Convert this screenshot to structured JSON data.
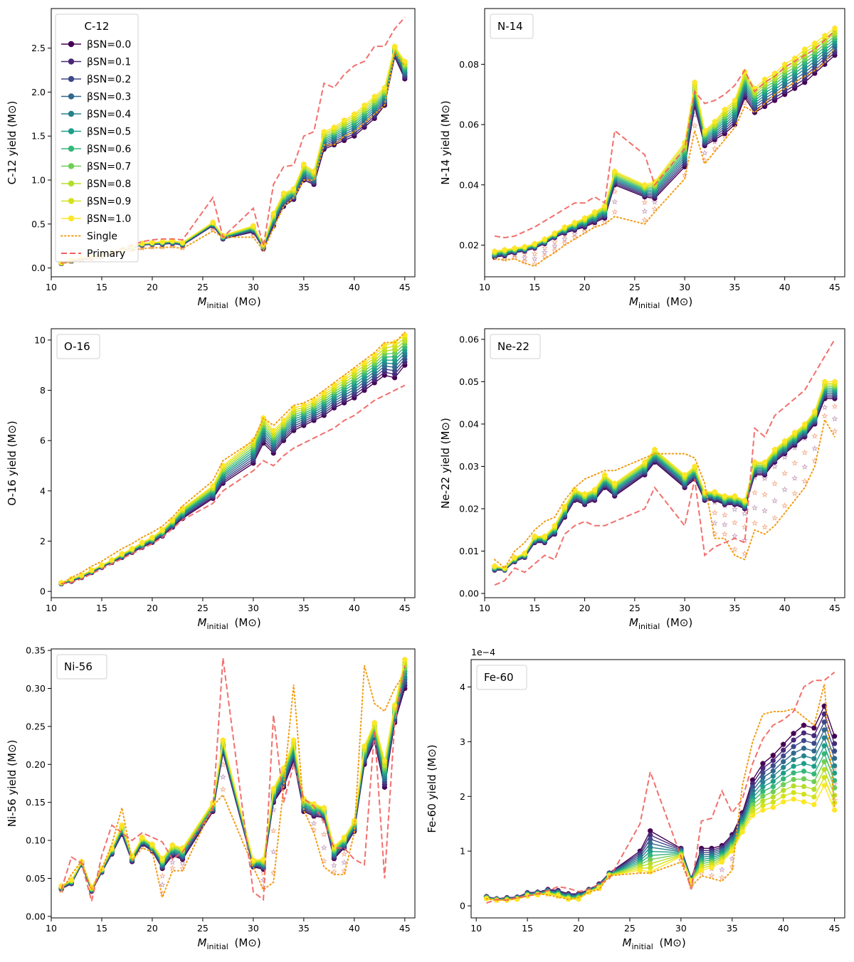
{
  "chart_data": [
    {
      "type": "line",
      "title": "C-12",
      "label": "C-12",
      "xlabel_main": "M",
      "xlabel_sub": "initial",
      "xlabel_unit": "(M⊙)",
      "ylabel": "C-12 yield (M⊙)",
      "xlim": [
        10,
        46
      ],
      "ylim": [
        -0.1,
        2.95
      ],
      "xticks": [
        10,
        15,
        20,
        25,
        30,
        35,
        40,
        45
      ],
      "yticks": [
        0.0,
        0.5,
        1.0,
        1.5,
        2.0,
        2.5
      ],
      "ytick_labels": [
        "0.0",
        "0.5",
        "1.0",
        "1.5",
        "2.0",
        "2.5"
      ],
      "x": [
        11,
        12,
        13,
        14,
        15,
        16,
        17,
        18,
        19,
        20,
        21,
        22,
        23,
        26,
        27,
        30,
        31,
        32,
        33,
        34,
        35,
        36,
        37,
        38,
        39,
        40,
        41,
        42,
        43,
        44,
        45
      ],
      "beta_low": [
        0.05,
        0.08,
        0.1,
        0.12,
        0.14,
        0.17,
        0.2,
        0.23,
        0.26,
        0.27,
        0.27,
        0.28,
        0.26,
        0.48,
        0.33,
        0.41,
        0.22,
        0.48,
        0.7,
        0.78,
        1.0,
        0.95,
        1.35,
        1.4,
        1.45,
        1.5,
        1.6,
        1.7,
        1.85,
        2.4,
        2.15
      ],
      "beta_high": [
        0.06,
        0.09,
        0.11,
        0.13,
        0.15,
        0.18,
        0.21,
        0.24,
        0.28,
        0.29,
        0.3,
        0.31,
        0.29,
        0.52,
        0.37,
        0.48,
        0.27,
        0.62,
        0.85,
        0.9,
        1.18,
        1.1,
        1.55,
        1.6,
        1.68,
        1.75,
        1.85,
        1.95,
        2.05,
        2.52,
        2.35
      ],
      "single": [
        0.05,
        0.07,
        0.09,
        0.1,
        0.12,
        0.15,
        0.18,
        0.2,
        0.22,
        0.23,
        0.23,
        0.24,
        0.22,
        0.42,
        0.35,
        0.35,
        0.2,
        0.45,
        0.7,
        0.8,
        1.0,
        1.0,
        1.4,
        1.4,
        1.5,
        1.55,
        1.65,
        1.75,
        1.85,
        2.45,
        2.3
      ],
      "primary": [
        0.06,
        0.08,
        0.1,
        0.12,
        0.15,
        0.18,
        0.22,
        0.26,
        0.3,
        0.32,
        0.33,
        0.33,
        0.32,
        0.8,
        0.35,
        0.68,
        0.25,
        0.95,
        1.15,
        1.17,
        1.5,
        1.55,
        2.1,
        2.05,
        2.2,
        2.3,
        2.35,
        2.52,
        2.52,
        2.72,
        2.85
      ],
      "stars": true,
      "legend": {
        "title": "C-12",
        "beta_labels": [
          "βSN=0.0",
          "βSN=0.1",
          "βSN=0.2",
          "βSN=0.3",
          "βSN=0.4",
          "βSN=0.5",
          "βSN=0.6",
          "βSN=0.7",
          "βSN=0.8",
          "βSN=0.9",
          "βSN=1.0"
        ],
        "single_label": "Single",
        "primary_label": "Primary"
      }
    },
    {
      "type": "line",
      "title": "N-14",
      "label": "N-14",
      "xlabel_main": "M",
      "xlabel_sub": "initial",
      "xlabel_unit": "(M⊙)",
      "ylabel": "N-14 yield (M⊙)",
      "xlim": [
        10,
        46
      ],
      "ylim": [
        0.0095,
        0.0985
      ],
      "xticks": [
        10,
        15,
        20,
        25,
        30,
        35,
        40,
        45
      ],
      "yticks": [
        0.02,
        0.04,
        0.06,
        0.08
      ],
      "ytick_labels": [
        "0.02",
        "0.04",
        "0.06",
        "0.08"
      ],
      "x": [
        11,
        12,
        13,
        14,
        15,
        16,
        17,
        18,
        19,
        20,
        21,
        22,
        23,
        26,
        27,
        30,
        31,
        32,
        33,
        34,
        35,
        36,
        37,
        38,
        39,
        40,
        41,
        42,
        43,
        44,
        45
      ],
      "beta_low": [
        0.016,
        0.0165,
        0.0175,
        0.018,
        0.019,
        0.0205,
        0.0225,
        0.024,
        0.025,
        0.026,
        0.0275,
        0.029,
        0.04,
        0.036,
        0.0355,
        0.046,
        0.066,
        0.053,
        0.055,
        0.057,
        0.06,
        0.069,
        0.064,
        0.066,
        0.068,
        0.07,
        0.072,
        0.074,
        0.077,
        0.08,
        0.083
      ],
      "beta_high": [
        0.018,
        0.0185,
        0.019,
        0.0195,
        0.0205,
        0.022,
        0.024,
        0.026,
        0.0275,
        0.029,
        0.031,
        0.033,
        0.0445,
        0.04,
        0.041,
        0.054,
        0.074,
        0.058,
        0.061,
        0.065,
        0.068,
        0.0775,
        0.072,
        0.075,
        0.077,
        0.08,
        0.082,
        0.085,
        0.087,
        0.0895,
        0.092
      ],
      "single": [
        0.0155,
        0.015,
        0.0155,
        0.014,
        0.013,
        0.0155,
        0.0175,
        0.02,
        0.022,
        0.024,
        0.026,
        0.027,
        0.0295,
        0.027,
        0.031,
        0.042,
        0.058,
        0.047,
        0.051,
        0.055,
        0.059,
        0.066,
        0.064,
        0.067,
        0.07,
        0.072,
        0.074,
        0.076,
        0.078,
        0.0805,
        0.0855
      ],
      "primary": [
        0.023,
        0.0225,
        0.023,
        0.0245,
        0.026,
        0.028,
        0.03,
        0.032,
        0.034,
        0.034,
        0.036,
        0.034,
        0.058,
        0.05,
        0.04,
        0.052,
        0.071,
        0.067,
        0.068,
        0.07,
        0.073,
        0.078,
        0.071,
        0.074,
        0.076,
        0.079,
        0.081,
        0.083,
        0.085,
        0.088,
        0.091
      ],
      "stars": true
    },
    {
      "type": "line",
      "title": "O-16",
      "label": "O-16",
      "xlabel_main": "M",
      "xlabel_sub": "initial",
      "xlabel_unit": "(M⊙)",
      "ylabel": "O-16 yield (M⊙)",
      "xlim": [
        10,
        46
      ],
      "ylim": [
        -0.25,
        10.45
      ],
      "xticks": [
        10,
        15,
        20,
        25,
        30,
        35,
        40,
        45
      ],
      "yticks": [
        0,
        2,
        4,
        6,
        8,
        10
      ],
      "ytick_labels": [
        "0",
        "2",
        "4",
        "6",
        "8",
        "10"
      ],
      "x": [
        11,
        12,
        13,
        14,
        15,
        16,
        17,
        18,
        19,
        20,
        21,
        22,
        23,
        26,
        27,
        30,
        31,
        32,
        33,
        34,
        35,
        36,
        37,
        38,
        39,
        40,
        41,
        42,
        43,
        44,
        45
      ],
      "beta_low": [
        0.3,
        0.4,
        0.55,
        0.75,
        0.95,
        1.15,
        1.35,
        1.55,
        1.75,
        1.95,
        2.2,
        2.55,
        2.9,
        3.7,
        4.3,
        5.1,
        5.9,
        5.5,
        6.0,
        6.4,
        6.6,
        6.8,
        7.0,
        7.3,
        7.5,
        7.7,
        8.0,
        8.3,
        8.6,
        8.5,
        9.0
      ],
      "beta_high": [
        0.35,
        0.5,
        0.65,
        0.85,
        1.05,
        1.25,
        1.5,
        1.7,
        1.95,
        2.15,
        2.45,
        2.85,
        3.3,
        4.2,
        5.0,
        6.0,
        6.9,
        6.4,
        6.8,
        7.3,
        7.4,
        7.6,
        7.9,
        8.2,
        8.5,
        8.8,
        9.1,
        9.4,
        9.8,
        9.9,
        10.2
      ],
      "single": [
        0.3,
        0.55,
        0.75,
        1.0,
        1.2,
        1.45,
        1.7,
        1.9,
        2.15,
        2.35,
        2.6,
        2.95,
        3.4,
        4.4,
        5.2,
        6.0,
        6.9,
        6.6,
        7.0,
        7.4,
        7.5,
        7.7,
        8.0,
        8.3,
        8.6,
        8.9,
        9.2,
        9.5,
        9.9,
        9.9,
        10.3
      ],
      "primary": [
        0.3,
        0.35,
        0.5,
        0.7,
        0.9,
        1.1,
        1.3,
        1.5,
        1.7,
        1.9,
        2.15,
        2.5,
        2.85,
        3.5,
        4.0,
        4.8,
        5.2,
        5.0,
        5.4,
        5.7,
        5.9,
        6.1,
        6.3,
        6.5,
        6.8,
        7.0,
        7.3,
        7.6,
        7.8,
        8.0,
        8.2
      ],
      "stars": true
    },
    {
      "type": "line",
      "title": "Ne-22",
      "label": "Ne-22",
      "xlabel_main": "M",
      "xlabel_sub": "initial",
      "xlabel_unit": "(M⊙)",
      "ylabel": "Ne-22 yield (M⊙)",
      "xlim": [
        10,
        46
      ],
      "ylim": [
        -0.001,
        0.0625
      ],
      "xticks": [
        10,
        15,
        20,
        25,
        30,
        35,
        40,
        45
      ],
      "yticks": [
        0.0,
        0.01,
        0.02,
        0.03,
        0.04,
        0.05,
        0.06
      ],
      "ytick_labels": [
        "0.00",
        "0.01",
        "0.02",
        "0.03",
        "0.04",
        "0.05",
        "0.06"
      ],
      "x": [
        11,
        12,
        13,
        14,
        15,
        16,
        17,
        18,
        19,
        20,
        21,
        22,
        23,
        26,
        27,
        30,
        31,
        32,
        33,
        34,
        35,
        36,
        37,
        38,
        39,
        40,
        41,
        42,
        43,
        44,
        45
      ],
      "beta_low": [
        0.0055,
        0.0055,
        0.0075,
        0.0085,
        0.012,
        0.012,
        0.014,
        0.018,
        0.022,
        0.021,
        0.022,
        0.025,
        0.023,
        0.028,
        0.031,
        0.025,
        0.027,
        0.022,
        0.022,
        0.021,
        0.021,
        0.02,
        0.028,
        0.028,
        0.031,
        0.033,
        0.035,
        0.037,
        0.04,
        0.046,
        0.046
      ],
      "beta_high": [
        0.0065,
        0.006,
        0.0085,
        0.0095,
        0.0135,
        0.0135,
        0.016,
        0.0205,
        0.0245,
        0.0235,
        0.0245,
        0.028,
        0.026,
        0.031,
        0.034,
        0.028,
        0.03,
        0.024,
        0.024,
        0.023,
        0.023,
        0.022,
        0.031,
        0.031,
        0.034,
        0.036,
        0.038,
        0.04,
        0.043,
        0.05,
        0.05
      ],
      "single": [
        0.008,
        0.006,
        0.01,
        0.012,
        0.015,
        0.017,
        0.018,
        0.022,
        0.025,
        0.027,
        0.028,
        0.029,
        0.029,
        0.032,
        0.033,
        0.033,
        0.032,
        0.026,
        0.013,
        0.013,
        0.009,
        0.008,
        0.015,
        0.014,
        0.016,
        0.019,
        0.022,
        0.025,
        0.03,
        0.041,
        0.037
      ],
      "primary": [
        0.002,
        0.003,
        0.006,
        0.005,
        0.007,
        0.009,
        0.008,
        0.014,
        0.016,
        0.017,
        0.016,
        0.016,
        0.017,
        0.02,
        0.025,
        0.016,
        0.027,
        0.009,
        0.011,
        0.012,
        0.013,
        0.012,
        0.039,
        0.037,
        0.042,
        0.044,
        0.046,
        0.048,
        0.052,
        0.056,
        0.06
      ],
      "stars": true
    },
    {
      "type": "line",
      "title": "Ni-56",
      "label": "Ni-56",
      "xlabel_main": "M",
      "xlabel_sub": "initial",
      "xlabel_unit": "(M⊙)",
      "ylabel": "Ni-56 yield (M⊙)",
      "xlim": [
        10,
        46
      ],
      "ylim": [
        -0.002,
        0.352
      ],
      "xticks": [
        10,
        15,
        20,
        25,
        30,
        35,
        40,
        45
      ],
      "yticks": [
        0.0,
        0.05,
        0.1,
        0.15,
        0.2,
        0.25,
        0.3,
        0.35
      ],
      "ytick_labels": [
        "0.00",
        "0.05",
        "0.10",
        "0.15",
        "0.20",
        "0.25",
        "0.30",
        "0.35"
      ],
      "x": [
        11,
        12,
        13,
        14,
        15,
        16,
        17,
        18,
        19,
        20,
        21,
        22,
        23,
        26,
        27,
        30,
        31,
        32,
        33,
        34,
        35,
        36,
        37,
        38,
        39,
        40,
        41,
        42,
        43,
        44,
        45
      ],
      "beta_low": [
        0.036,
        0.043,
        0.068,
        0.033,
        0.058,
        0.082,
        0.108,
        0.072,
        0.095,
        0.086,
        0.063,
        0.08,
        0.075,
        0.138,
        0.215,
        0.065,
        0.062,
        0.15,
        0.17,
        0.205,
        0.138,
        0.132,
        0.13,
        0.076,
        0.09,
        0.112,
        0.2,
        0.23,
        0.17,
        0.255,
        0.3
      ],
      "beta_high": [
        0.04,
        0.048,
        0.072,
        0.038,
        0.063,
        0.09,
        0.12,
        0.08,
        0.104,
        0.095,
        0.076,
        0.094,
        0.09,
        0.15,
        0.232,
        0.074,
        0.075,
        0.168,
        0.195,
        0.232,
        0.155,
        0.148,
        0.143,
        0.092,
        0.104,
        0.126,
        0.224,
        0.255,
        0.205,
        0.278,
        0.338
      ],
      "single": [
        0.033,
        0.055,
        0.073,
        0.035,
        0.062,
        0.095,
        0.143,
        0.073,
        0.09,
        0.085,
        0.025,
        0.06,
        0.06,
        0.145,
        0.16,
        0.065,
        0.035,
        0.045,
        0.17,
        0.305,
        0.14,
        0.11,
        0.065,
        0.055,
        0.055,
        0.11,
        0.33,
        0.28,
        0.27,
        0.3,
        0.32
      ],
      "primary": [
        0.035,
        0.078,
        0.07,
        0.02,
        0.08,
        0.12,
        0.11,
        0.1,
        0.11,
        0.104,
        0.098,
        0.075,
        0.085,
        0.14,
        0.34,
        0.032,
        0.022,
        0.265,
        0.15,
        0.2,
        0.155,
        0.145,
        0.125,
        0.09,
        0.09,
        0.075,
        0.068,
        0.245,
        0.05,
        0.255,
        0.33
      ],
      "stars": true
    },
    {
      "type": "line",
      "title": "Fe-60",
      "label": "Fe-60",
      "xlabel_main": "M",
      "xlabel_sub": "initial",
      "xlabel_unit": "(M⊙)",
      "ylabel": "Fe-60 yield (M⊙)",
      "offset_text": "1e−4",
      "xlim": [
        9.5,
        46
      ],
      "ylim": [
        -0.22,
        4.5
      ],
      "xticks": [
        10,
        15,
        20,
        25,
        30,
        35,
        40,
        45
      ],
      "yticks": [
        0,
        1,
        2,
        3,
        4
      ],
      "ytick_labels": [
        "0",
        "1",
        "2",
        "3",
        "4"
      ],
      "x": [
        11,
        12,
        13,
        14,
        15,
        16,
        17,
        18,
        19,
        20,
        21,
        22,
        23,
        26,
        27,
        30,
        31,
        32,
        33,
        34,
        35,
        36,
        37,
        38,
        39,
        40,
        41,
        42,
        43,
        44,
        45
      ],
      "beta_low": [
        0.17,
        0.13,
        0.15,
        0.16,
        0.24,
        0.25,
        0.3,
        0.28,
        0.22,
        0.22,
        0.3,
        0.4,
        0.6,
        1.0,
        1.37,
        1.05,
        0.5,
        1.05,
        1.05,
        1.1,
        1.3,
        1.7,
        2.3,
        2.6,
        2.75,
        2.95,
        3.15,
        3.3,
        3.25,
        3.65,
        3.1
      ],
      "beta_high": [
        0.13,
        0.1,
        0.1,
        0.12,
        0.18,
        0.2,
        0.22,
        0.18,
        0.12,
        0.12,
        0.25,
        0.32,
        0.55,
        0.65,
        0.62,
        0.9,
        0.45,
        0.65,
        0.7,
        0.8,
        1.0,
        1.35,
        1.65,
        1.75,
        1.8,
        1.9,
        1.95,
        1.9,
        1.85,
        2.2,
        1.75
      ],
      "single": [
        0.13,
        0.1,
        0.12,
        0.14,
        0.18,
        0.22,
        0.2,
        0.16,
        0.12,
        0.15,
        0.25,
        0.3,
        0.55,
        0.6,
        0.6,
        0.8,
        0.35,
        0.55,
        0.5,
        0.45,
        0.65,
        2.2,
        3.0,
        3.5,
        3.55,
        3.55,
        3.6,
        3.45,
        3.3,
        4.05,
        1.8
      ],
      "primary": [
        0.05,
        0.12,
        0.1,
        0.15,
        0.18,
        0.22,
        0.28,
        0.35,
        0.32,
        0.26,
        0.3,
        0.4,
        0.5,
        1.5,
        2.45,
        0.9,
        0.3,
        1.55,
        1.6,
        2.1,
        1.7,
        1.95,
        2.6,
        3.05,
        3.3,
        3.4,
        3.55,
        4.0,
        4.12,
        4.12,
        4.27
      ],
      "stars": true
    }
  ]
}
